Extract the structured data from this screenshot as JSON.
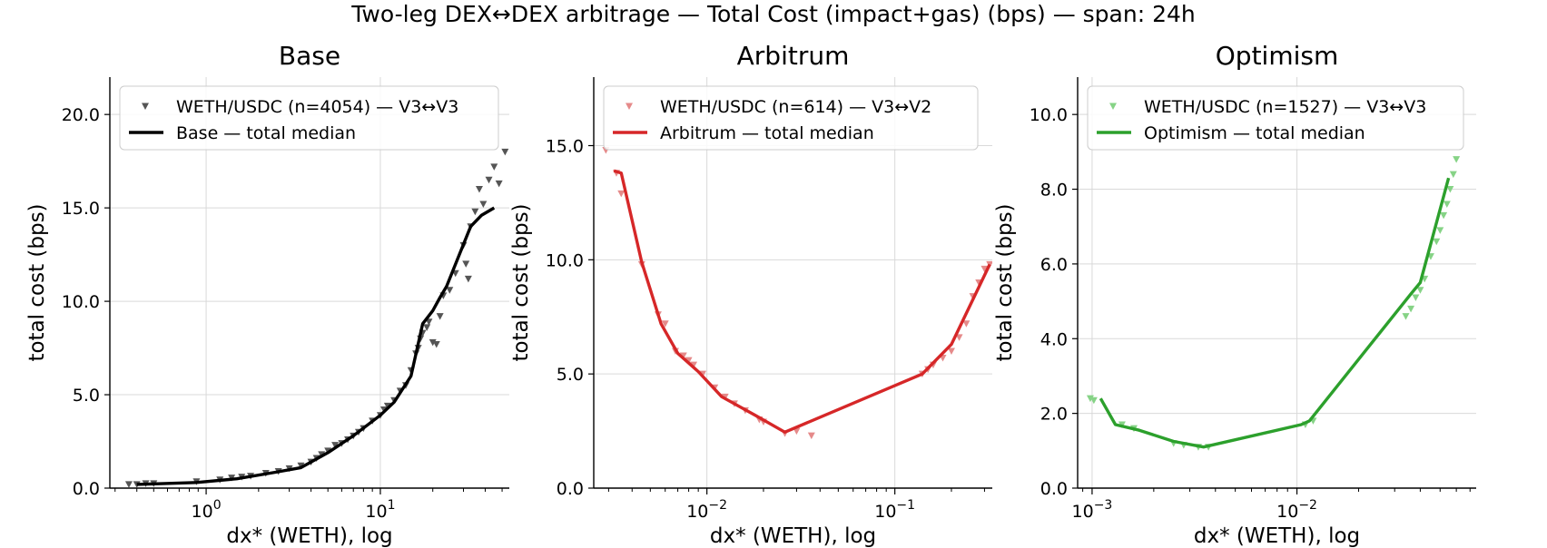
{
  "suptitle": "Two-leg DEX↔DEX arbitrage — Total Cost (impact+gas) (bps) — span: 24h",
  "chart_data": [
    {
      "type": "scatter",
      "title": "Base",
      "xlabel": "dx* (WETH), log",
      "ylabel": "total cost (bps)",
      "xscale": "log",
      "xlim": [
        0.28,
        55
      ],
      "ylim": [
        0,
        22
      ],
      "xticks": [
        {
          "value": 1,
          "label": "10^0"
        },
        {
          "value": 10,
          "label": "10^1"
        }
      ],
      "yticks": [
        {
          "value": 0,
          "label": "0.0"
        },
        {
          "value": 5,
          "label": "5.0"
        },
        {
          "value": 10,
          "label": "10.0"
        },
        {
          "value": 15,
          "label": "15.0"
        },
        {
          "value": 20,
          "label": "20.0"
        }
      ],
      "grid": true,
      "legend_position": "upper-left",
      "color": "#000000",
      "series": [
        {
          "name": "WETH/USDC (n=4054) — V3↔V3",
          "kind": "scatter",
          "marker": "triangle-down",
          "color": "#555555",
          "points": [
            [
              0.36,
              0.2
            ],
            [
              0.4,
              0.2
            ],
            [
              0.45,
              0.25
            ],
            [
              0.5,
              0.25
            ],
            [
              0.88,
              0.35
            ],
            [
              1.2,
              0.45
            ],
            [
              1.4,
              0.55
            ],
            [
              1.6,
              0.6
            ],
            [
              1.8,
              0.65
            ],
            [
              2.2,
              0.8
            ],
            [
              2.6,
              0.9
            ],
            [
              3.0,
              1.05
            ],
            [
              3.5,
              1.2
            ],
            [
              4.0,
              1.4
            ],
            [
              4.3,
              1.6
            ],
            [
              4.6,
              1.8
            ],
            [
              5.0,
              2.0
            ],
            [
              5.5,
              2.3
            ],
            [
              6.0,
              2.4
            ],
            [
              6.5,
              2.6
            ],
            [
              7.0,
              2.8
            ],
            [
              7.5,
              3.0
            ],
            [
              8.0,
              3.2
            ],
            [
              9.0,
              3.6
            ],
            [
              10.0,
              3.9
            ],
            [
              10.5,
              4.2
            ],
            [
              11.0,
              4.4
            ],
            [
              12.0,
              4.7
            ],
            [
              13.0,
              5.2
            ],
            [
              14.0,
              5.5
            ],
            [
              15.0,
              6.3
            ],
            [
              16.0,
              7.2
            ],
            [
              16.5,
              7.5
            ],
            [
              17.0,
              8.0
            ],
            [
              17.5,
              8.3
            ],
            [
              18.5,
              8.6
            ],
            [
              19.0,
              8.9
            ],
            [
              20.0,
              7.8
            ],
            [
              21.0,
              7.7
            ],
            [
              22.0,
              9.2
            ],
            [
              23.0,
              10.3
            ],
            [
              25.0,
              10.6
            ],
            [
              27.0,
              11.5
            ],
            [
              30.0,
              13.0
            ],
            [
              31.0,
              12.0
            ],
            [
              32.0,
              11.2
            ],
            [
              33.0,
              14.0
            ],
            [
              35.0,
              14.8
            ],
            [
              37.0,
              16.0
            ],
            [
              39.0,
              15.2
            ],
            [
              42.0,
              16.5
            ],
            [
              45.0,
              17.2
            ],
            [
              48.0,
              16.3
            ],
            [
              52.0,
              18.0
            ]
          ]
        },
        {
          "name": "Base — total median",
          "kind": "line",
          "color": "#000000",
          "points": [
            [
              0.4,
              0.2
            ],
            [
              0.88,
              0.3
            ],
            [
              1.5,
              0.5
            ],
            [
              2.5,
              0.85
            ],
            [
              3.5,
              1.1
            ],
            [
              5.0,
              1.9
            ],
            [
              7.0,
              2.8
            ],
            [
              10.0,
              3.9
            ],
            [
              12.0,
              4.6
            ],
            [
              15.0,
              6.0
            ],
            [
              17.5,
              8.8
            ],
            [
              20.0,
              9.5
            ],
            [
              22.0,
              10.2
            ],
            [
              24.0,
              10.8
            ],
            [
              33.0,
              14.0
            ],
            [
              38.0,
              14.6
            ],
            [
              45.0,
              15.0
            ]
          ]
        }
      ]
    },
    {
      "type": "scatter",
      "title": "Arbitrum",
      "xlabel": "dx* (WETH), log",
      "ylabel": "total cost (bps)",
      "xscale": "log",
      "xlim": [
        0.0025,
        0.33
      ],
      "ylim": [
        0,
        18
      ],
      "xticks": [
        {
          "value": 0.01,
          "label": "10^-2"
        },
        {
          "value": 0.1,
          "label": "10^-1"
        }
      ],
      "yticks": [
        {
          "value": 0,
          "label": "0.0"
        },
        {
          "value": 5,
          "label": "5.0"
        },
        {
          "value": 10,
          "label": "10.0"
        },
        {
          "value": 15,
          "label": "15.0"
        }
      ],
      "grid": true,
      "legend_position": "upper-left",
      "color": "#d62728",
      "series": [
        {
          "name": "WETH/USDC (n=614) — V3↔V2",
          "kind": "scatter",
          "marker": "triangle-down",
          "color": "#e58a8a",
          "points": [
            [
              0.0029,
              14.8
            ],
            [
              0.0033,
              13.8
            ],
            [
              0.0035,
              12.9
            ],
            [
              0.0045,
              9.8
            ],
            [
              0.0055,
              7.6
            ],
            [
              0.006,
              7.2
            ],
            [
              0.0068,
              6.0
            ],
            [
              0.0075,
              5.8
            ],
            [
              0.008,
              5.6
            ],
            [
              0.0085,
              5.4
            ],
            [
              0.0095,
              5.0
            ],
            [
              0.011,
              4.4
            ],
            [
              0.0125,
              4.0
            ],
            [
              0.014,
              3.7
            ],
            [
              0.016,
              3.4
            ],
            [
              0.019,
              3.0
            ],
            [
              0.02,
              2.9
            ],
            [
              0.026,
              2.4
            ],
            [
              0.03,
              2.5
            ],
            [
              0.036,
              2.3
            ],
            [
              0.14,
              5.0
            ],
            [
              0.15,
              5.2
            ],
            [
              0.16,
              5.4
            ],
            [
              0.18,
              5.7
            ],
            [
              0.2,
              6.0
            ],
            [
              0.22,
              6.6
            ],
            [
              0.24,
              7.2
            ],
            [
              0.26,
              8.4
            ],
            [
              0.28,
              9.0
            ],
            [
              0.3,
              9.6
            ],
            [
              0.32,
              9.8
            ]
          ]
        },
        {
          "name": "Arbitrum — total median",
          "kind": "line",
          "color": "#d62728",
          "points": [
            [
              0.0032,
              13.9
            ],
            [
              0.0035,
              13.8
            ],
            [
              0.0045,
              9.9
            ],
            [
              0.0057,
              7.2
            ],
            [
              0.007,
              5.9
            ],
            [
              0.009,
              5.1
            ],
            [
              0.012,
              4.0
            ],
            [
              0.018,
              3.2
            ],
            [
              0.026,
              2.45
            ],
            [
              0.14,
              5.0
            ],
            [
              0.2,
              6.3
            ],
            [
              0.32,
              9.8
            ]
          ]
        }
      ]
    },
    {
      "type": "scatter",
      "title": "Optimism",
      "xlabel": "dx* (WETH), log",
      "ylabel": "total cost (bps)",
      "xscale": "log",
      "xlim": [
        0.00085,
        0.075
      ],
      "ylim": [
        0,
        11
      ],
      "xticks": [
        {
          "value": 0.001,
          "label": "10^-3"
        },
        {
          "value": 0.01,
          "label": "10^-2"
        }
      ],
      "yticks": [
        {
          "value": 0,
          "label": "0.0"
        },
        {
          "value": 2,
          "label": "2.0"
        },
        {
          "value": 4,
          "label": "4.0"
        },
        {
          "value": 6,
          "label": "6.0"
        },
        {
          "value": 8,
          "label": "8.0"
        },
        {
          "value": 10,
          "label": "10.0"
        }
      ],
      "grid": true,
      "legend_position": "upper-left",
      "color": "#2ca02c",
      "series": [
        {
          "name": "WETH/USDC (n=1527) — V3↔V3",
          "kind": "scatter",
          "marker": "triangle-down",
          "color": "#86d386",
          "points": [
            [
              0.00098,
              2.4
            ],
            [
              0.00102,
              2.35
            ],
            [
              0.0014,
              1.7
            ],
            [
              0.0016,
              1.6
            ],
            [
              0.0025,
              1.2
            ],
            [
              0.0028,
              1.15
            ],
            [
              0.0033,
              1.1
            ],
            [
              0.0037,
              1.1
            ],
            [
              0.011,
              1.7
            ],
            [
              0.012,
              1.8
            ],
            [
              0.034,
              4.6
            ],
            [
              0.036,
              4.8
            ],
            [
              0.038,
              5.1
            ],
            [
              0.04,
              5.3
            ],
            [
              0.042,
              5.6
            ],
            [
              0.045,
              6.2
            ],
            [
              0.048,
              6.6
            ],
            [
              0.05,
              6.9
            ],
            [
              0.052,
              7.3
            ],
            [
              0.054,
              7.6
            ],
            [
              0.056,
              8.0
            ],
            [
              0.058,
              8.4
            ],
            [
              0.06,
              8.8
            ]
          ]
        },
        {
          "name": "Optimism — total median",
          "kind": "line",
          "color": "#2ca02c",
          "points": [
            [
              0.0011,
              2.4
            ],
            [
              0.0013,
              1.7
            ],
            [
              0.0017,
              1.55
            ],
            [
              0.0025,
              1.25
            ],
            [
              0.0035,
              1.1
            ],
            [
              0.0105,
              1.7
            ],
            [
              0.0115,
              1.8
            ],
            [
              0.036,
              5.2
            ],
            [
              0.04,
              5.5
            ],
            [
              0.055,
              8.3
            ]
          ]
        }
      ]
    }
  ]
}
